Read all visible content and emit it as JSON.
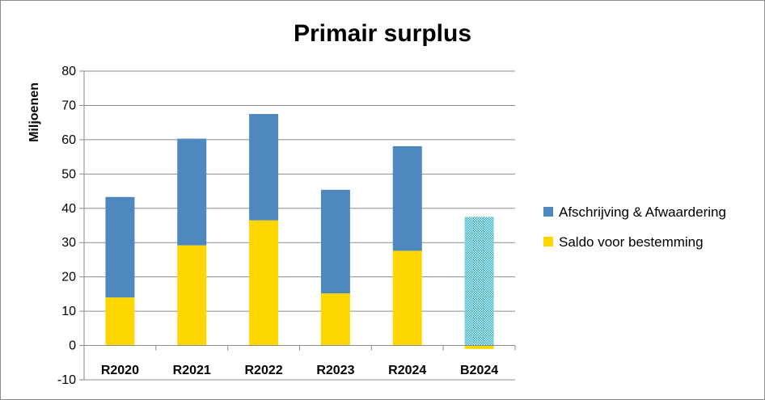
{
  "chart_data": {
    "type": "bar",
    "stacked": true,
    "title": "Primair surplus",
    "ylabel": "Miljoenen",
    "xlabel": "",
    "ylim": [
      -10,
      80
    ],
    "yticks": [
      -10,
      0,
      10,
      20,
      30,
      40,
      50,
      60,
      70,
      80
    ],
    "grid": true,
    "legend_position": "right",
    "categories": [
      "R2020",
      "R2021",
      "R2022",
      "R2023",
      "R2024",
      "B2024"
    ],
    "series": [
      {
        "name": "Saldo voor bestemming",
        "color": "#FFD700",
        "values": [
          14,
          29.2,
          36.5,
          15.2,
          27.6,
          -1
        ]
      },
      {
        "name": "Afschrijving & Afwaardering",
        "color": "#4F88BE",
        "values": [
          29.3,
          31.1,
          31,
          30.2,
          30.5,
          37.5
        ]
      }
    ],
    "highlight": {
      "category": "B2024",
      "series": "Afschrijving & Afwaardering",
      "pattern": "dotted-teal",
      "color": "#1FA8C0"
    }
  }
}
